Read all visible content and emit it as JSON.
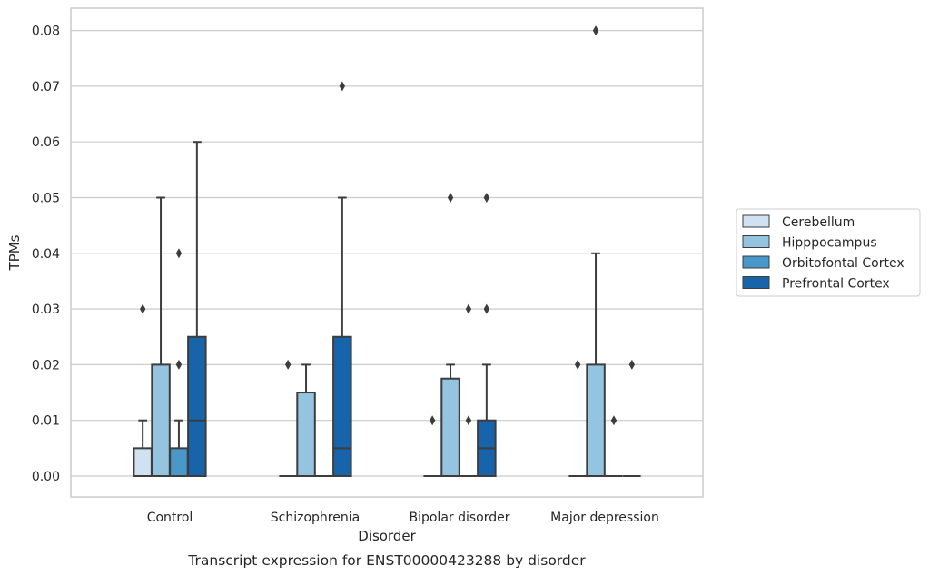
{
  "chart_data": {
    "type": "box",
    "xlabel": "Disorder",
    "ylabel": "TPMs",
    "caption": "Transcript expression for ENST00000423288 by disorder",
    "ylim": [
      -0.004,
      0.084
    ],
    "yticks": [
      "0.00",
      "0.01",
      "0.02",
      "0.03",
      "0.04",
      "0.05",
      "0.06",
      "0.07",
      "0.08"
    ],
    "grid": true,
    "legend_position": "right",
    "categories": [
      "Control",
      "Schizophrenia",
      "Bipolar disorder",
      "Major depression"
    ],
    "series": [
      {
        "name": "Cerebellum",
        "color": "#d0e1f2",
        "boxes": [
          {
            "q1": 0,
            "median": 0,
            "q3": 0.005,
            "whislo": 0,
            "whishi": 0.01,
            "fliers": [
              0.03
            ]
          },
          {
            "q1": 0,
            "median": 0,
            "q3": 0,
            "whislo": 0,
            "whishi": 0,
            "fliers": [
              0.02
            ]
          },
          {
            "q1": 0,
            "median": 0,
            "q3": 0,
            "whislo": 0,
            "whishi": 0,
            "fliers": [
              0.01
            ]
          },
          {
            "q1": 0,
            "median": 0,
            "q3": 0,
            "whislo": 0,
            "whishi": 0,
            "fliers": [
              0.02
            ]
          }
        ]
      },
      {
        "name": "Hipppocampus",
        "color": "#94c4df",
        "boxes": [
          {
            "q1": 0,
            "median": 0,
            "q3": 0.02,
            "whislo": 0,
            "whishi": 0.05,
            "fliers": []
          },
          {
            "q1": 0,
            "median": 0,
            "q3": 0.015,
            "whislo": 0,
            "whishi": 0.02,
            "fliers": []
          },
          {
            "q1": 0,
            "median": 0,
            "q3": 0.0175,
            "whislo": 0,
            "whishi": 0.02,
            "fliers": [
              0.05
            ]
          },
          {
            "q1": 0,
            "median": 0,
            "q3": 0.02,
            "whislo": 0,
            "whishi": 0.04,
            "fliers": [
              0.08
            ]
          }
        ]
      },
      {
        "name": "Orbitofontal Cortex",
        "color": "#4a98c9",
        "boxes": [
          {
            "q1": 0,
            "median": 0,
            "q3": 0.005,
            "whislo": 0,
            "whishi": 0.01,
            "fliers": [
              0.02,
              0.04
            ]
          },
          {
            "q1": 0,
            "median": 0,
            "q3": 0,
            "whislo": 0,
            "whishi": 0,
            "fliers": []
          },
          {
            "q1": 0,
            "median": 0,
            "q3": 0,
            "whislo": 0,
            "whishi": 0,
            "fliers": [
              0.01,
              0.03
            ]
          },
          {
            "q1": 0,
            "median": 0,
            "q3": 0,
            "whislo": 0,
            "whishi": 0,
            "fliers": [
              0.01
            ]
          }
        ]
      },
      {
        "name": "Prefrontal Cortex",
        "color": "#1764ab",
        "boxes": [
          {
            "q1": 0,
            "median": 0.01,
            "q3": 0.025,
            "whislo": 0,
            "whishi": 0.06,
            "fliers": []
          },
          {
            "q1": 0,
            "median": 0.005,
            "q3": 0.025,
            "whislo": 0,
            "whishi": 0.05,
            "fliers": [
              0.07
            ]
          },
          {
            "q1": 0,
            "median": 0.005,
            "q3": 0.01,
            "whislo": 0,
            "whishi": 0.02,
            "fliers": [
              0.03,
              0.05
            ]
          },
          {
            "q1": 0,
            "median": 0,
            "q3": 0,
            "whislo": 0,
            "whishi": 0,
            "fliers": [
              0.02
            ]
          }
        ]
      }
    ]
  }
}
